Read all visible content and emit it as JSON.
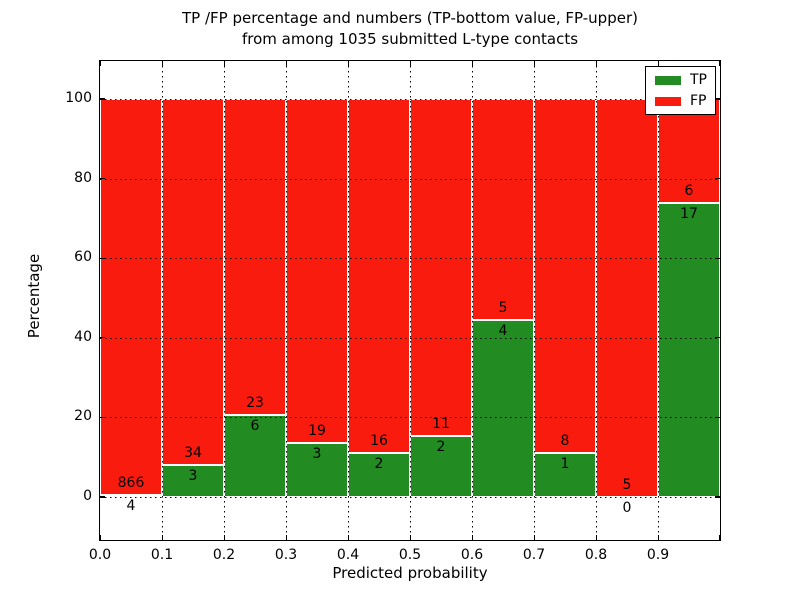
{
  "title": {
    "line1": "TP /FP percentage and numbers (TP-bottom value, FP-upper)",
    "line2": "from among 1035 submitted L-type contacts"
  },
  "axes": {
    "ylabel": "Percentage",
    "xlabel": "Predicted probability"
  },
  "legend": {
    "items": [
      {
        "label": "TP",
        "color": "#228b22"
      },
      {
        "label": "FP",
        "color": "#fa1b0f"
      }
    ]
  },
  "colors": {
    "tp_green": "#228b22",
    "fp_red": "#fa1b0f",
    "grid": "#000000",
    "background": "#ffffff"
  },
  "chart_data": {
    "type": "bar",
    "stacked": true,
    "normalized_to_percent": true,
    "title": "TP /FP percentage and numbers (TP-bottom value, FP-upper)\nfrom among 1035 submitted L-type contacts",
    "xlabel": "Predicted probability",
    "ylabel": "Percentage",
    "bin_edges": [
      0.0,
      0.1,
      0.2,
      0.3,
      0.4,
      0.5,
      0.6,
      0.7,
      0.8,
      0.9,
      1.0
    ],
    "xtick_labels": [
      "0.0",
      "0.1",
      "0.2",
      "0.3",
      "0.4",
      "0.5",
      "0.6",
      "0.7",
      "0.8",
      "0.9"
    ],
    "ytick_values": [
      0,
      20,
      40,
      60,
      80,
      100
    ],
    "xlim": [
      0.0,
      1.0
    ],
    "ylim": [
      -10.9,
      109.9
    ],
    "grid": "dotted, drawn above bars",
    "legend_position": "upper right",
    "total_contacts": 1035,
    "series": [
      {
        "name": "TP",
        "color": "#228b22",
        "counts": [
          4,
          3,
          6,
          3,
          2,
          2,
          4,
          1,
          0,
          17
        ]
      },
      {
        "name": "FP",
        "color": "#fa1b0f",
        "counts": [
          866,
          34,
          23,
          19,
          16,
          11,
          5,
          8,
          5,
          6
        ]
      }
    ],
    "tp_percent_of_bin": [
      0.46,
      8.11,
      20.69,
      13.64,
      11.11,
      15.38,
      44.44,
      11.11,
      0.0,
      73.91
    ]
  }
}
